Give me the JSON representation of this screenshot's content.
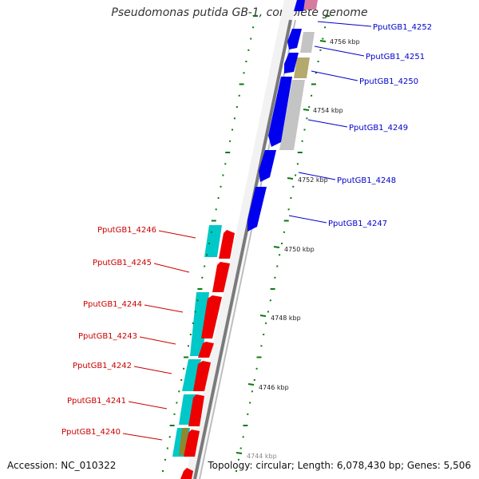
{
  "title": "Pseudomonas putida GB-1, complete genome",
  "footer": {
    "accession": "Accession: NC_010322",
    "topology": "Topology: circular; Length: 6,078,430 bp; Genes: 5,506"
  },
  "colors": {
    "forward_label": "#0000cc",
    "reverse_label": "#cc0000",
    "forward_cds": "#0000ee",
    "reverse_cds": "#ee0000",
    "reverse_aux": "#00c8c8",
    "backbone": "#777777",
    "tick": "#0a7a0a",
    "grey_feature": "#c4c4c4",
    "olive_feature": "#b4aa6e"
  },
  "ticks": [
    {
      "label": "4756 kbp"
    },
    {
      "label": "4754 kbp"
    },
    {
      "label": "4752 kbp"
    },
    {
      "label": "4750 kbp"
    },
    {
      "label": "4748 kbp"
    },
    {
      "label": "4746 kbp"
    },
    {
      "label": "4744 kbp"
    }
  ],
  "forward_genes": [
    {
      "label": "PputGB1_4252"
    },
    {
      "label": "PputGB1_4251"
    },
    {
      "label": "PputGB1_4250"
    },
    {
      "label": "PputGB1_4249"
    },
    {
      "label": "PputGB1_4248"
    },
    {
      "label": "PputGB1_4247"
    }
  ],
  "reverse_genes": [
    {
      "label": "PputGB1_4246"
    },
    {
      "label": "PputGB1_4245"
    },
    {
      "label": "PputGB1_4244"
    },
    {
      "label": "PputGB1_4243"
    },
    {
      "label": "PputGB1_4242"
    },
    {
      "label": "PputGB1_4241"
    },
    {
      "label": "PputGB1_4240"
    }
  ]
}
